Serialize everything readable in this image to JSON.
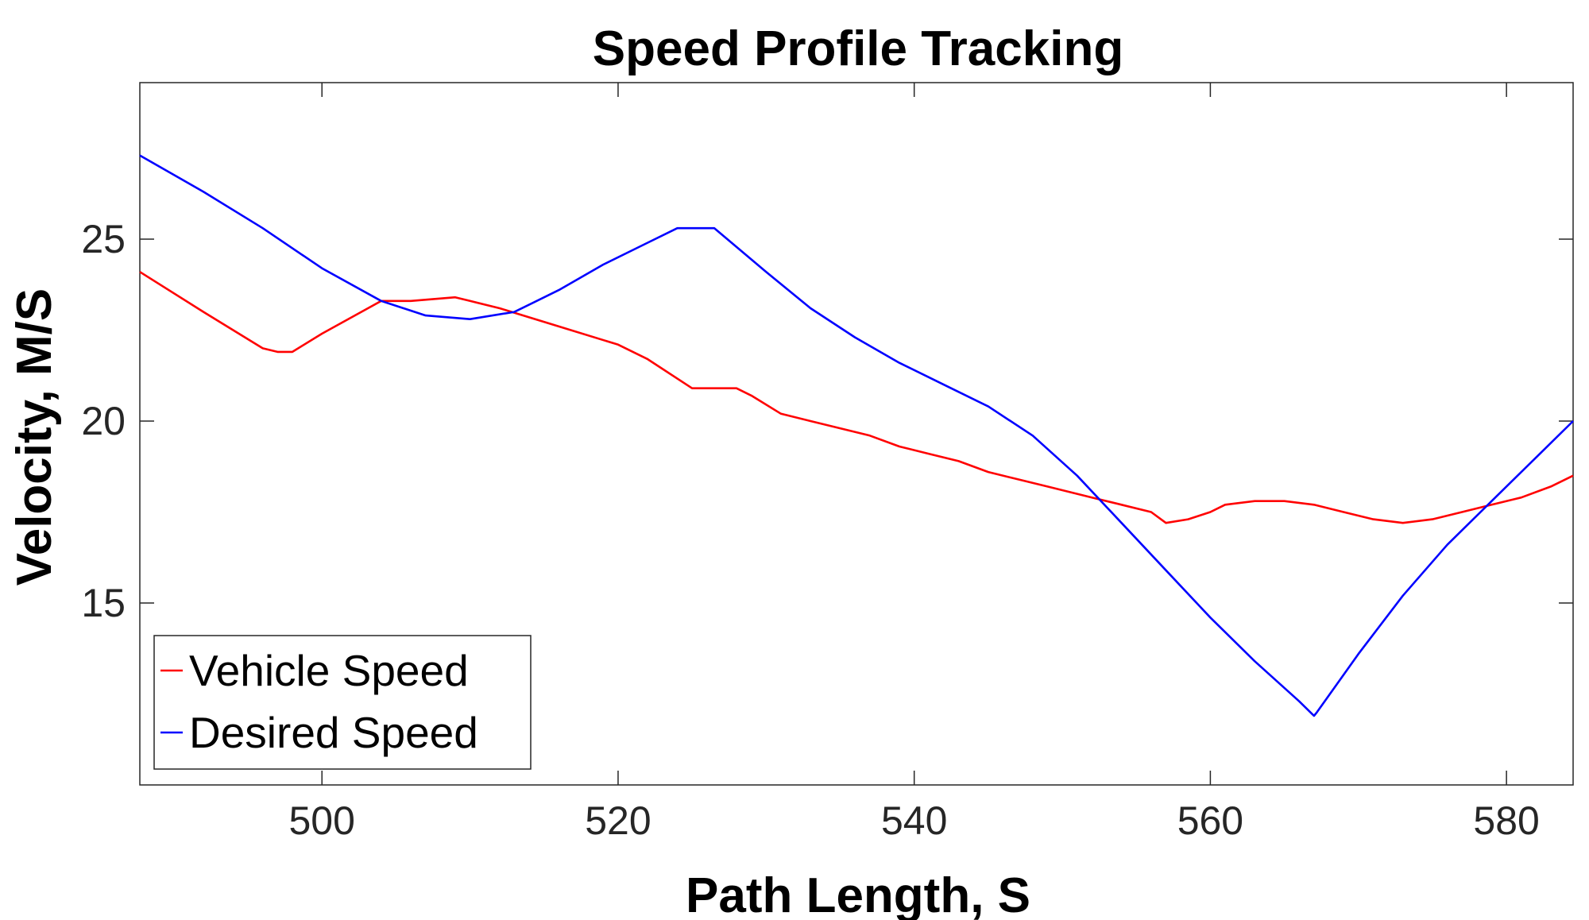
{
  "chart_data": {
    "type": "line",
    "title": "Speed Profile Tracking",
    "xlabel": "Path Length, S",
    "ylabel": "Velocity, M/S",
    "xlim": [
      487.7,
      584.5
    ],
    "ylim": [
      10.0,
      29.3
    ],
    "xticks": [
      500,
      520,
      540,
      560,
      580
    ],
    "yticks": [
      15,
      20,
      25
    ],
    "grid": false,
    "legend_position": "bottom-left",
    "series": [
      {
        "name": "Vehicle Speed",
        "color": "#ff0000",
        "x": [
          487.7,
          492,
          496,
          497,
          498,
          500,
          504,
          505,
          506,
          509,
          510,
          512,
          516,
          520,
          522,
          525,
          526,
          528,
          529,
          531,
          533,
          535,
          537,
          539,
          541,
          543,
          545,
          547,
          549,
          551,
          552,
          554,
          556,
          557,
          558.5,
          560,
          561,
          563,
          565,
          567,
          569,
          571,
          573,
          575,
          577,
          579,
          581,
          583,
          584.5
        ],
        "y": [
          24.1,
          23.0,
          22.0,
          21.9,
          21.9,
          22.4,
          23.3,
          23.3,
          23.3,
          23.4,
          23.3,
          23.1,
          22.6,
          22.1,
          21.7,
          20.9,
          20.9,
          20.9,
          20.7,
          20.2,
          20.0,
          19.8,
          19.6,
          19.3,
          19.1,
          18.9,
          18.6,
          18.4,
          18.2,
          18.0,
          17.9,
          17.7,
          17.5,
          17.2,
          17.3,
          17.5,
          17.7,
          17.8,
          17.8,
          17.7,
          17.5,
          17.3,
          17.2,
          17.3,
          17.5,
          17.7,
          17.9,
          18.2,
          18.5
        ]
      },
      {
        "name": "Desired Speed",
        "color": "#0000ff",
        "x": [
          487.7,
          492,
          496,
          500,
          504,
          507,
          510,
          513,
          516,
          519,
          522,
          524,
          526.5,
          530,
          533,
          536,
          539,
          542,
          545,
          548,
          551,
          554,
          557,
          560,
          563,
          566,
          567,
          567.2,
          570,
          573,
          576,
          579,
          582,
          584.5
        ],
        "y": [
          27.3,
          26.3,
          25.3,
          24.2,
          23.3,
          22.9,
          22.8,
          23.0,
          23.6,
          24.3,
          24.9,
          25.3,
          25.3,
          24.1,
          23.1,
          22.3,
          21.6,
          21.0,
          20.4,
          19.6,
          18.5,
          17.2,
          15.9,
          14.6,
          13.4,
          12.3,
          11.9,
          12.0,
          13.6,
          15.2,
          16.6,
          17.8,
          19.0,
          20.0
        ]
      }
    ]
  }
}
